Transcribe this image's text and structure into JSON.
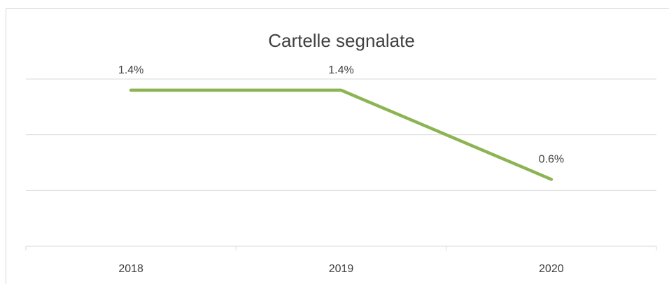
{
  "chart_data": {
    "type": "line",
    "title": "Cartelle segnalate",
    "categories": [
      "2018",
      "2019",
      "2020"
    ],
    "series": [
      {
        "name": "Cartelle segnalate",
        "color": "#8cb453",
        "values": [
          1.4,
          1.4,
          0.6
        ],
        "value_labels": [
          "1.4%",
          "1.4%",
          "0.6%"
        ]
      }
    ],
    "ylim": [
      0,
      1.5
    ],
    "yticks": [
      0,
      0.5,
      1,
      1.5
    ],
    "grid": true
  }
}
